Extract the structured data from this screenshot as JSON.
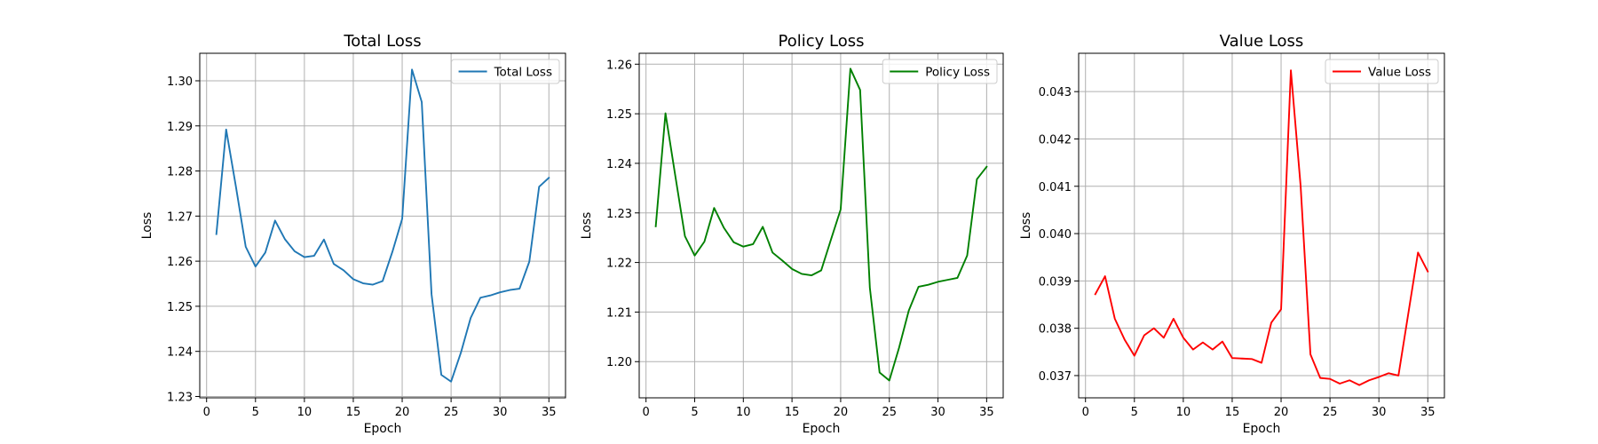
{
  "chart_data": [
    {
      "type": "line",
      "title": "Total Loss",
      "xlabel": "Epoch",
      "ylabel": "Loss",
      "grid": true,
      "legend_position": "top-right",
      "xlim": [
        -0.7,
        36.7
      ],
      "ylim": [
        1.2297,
        1.3061
      ],
      "xticks": [
        0,
        5,
        10,
        15,
        20,
        25,
        30,
        35
      ],
      "xtick_labels": [
        "0",
        "5",
        "10",
        "15",
        "20",
        "25",
        "30",
        "35"
      ],
      "yticks": [
        1.23,
        1.24,
        1.25,
        1.26,
        1.27,
        1.28,
        1.29,
        1.3
      ],
      "ytick_labels": [
        "1.23",
        "1.24",
        "1.25",
        "1.26",
        "1.27",
        "1.28",
        "1.29",
        "1.30"
      ],
      "x": [
        1,
        2,
        3,
        4,
        5,
        6,
        7,
        8,
        9,
        10,
        11,
        12,
        13,
        14,
        15,
        16,
        17,
        18,
        19,
        20,
        21,
        22,
        23,
        24,
        25,
        26,
        27,
        28,
        29,
        30,
        31,
        32,
        33,
        34,
        35
      ],
      "series": [
        {
          "name": "Total Loss",
          "color": "#1f77b4",
          "values": [
            1.266,
            1.2892,
            1.2765,
            1.2632,
            1.2588,
            1.2619,
            1.269,
            1.2649,
            1.2622,
            1.2609,
            1.2612,
            1.2648,
            1.2594,
            1.258,
            1.256,
            1.2551,
            1.2548,
            1.2556,
            1.2621,
            1.2694,
            1.3025,
            1.2953,
            1.2527,
            1.2348,
            1.2333,
            1.2397,
            1.2474,
            1.2519,
            1.2524,
            1.2531,
            1.2536,
            1.2539,
            1.2599,
            1.2765,
            1.2785
          ]
        }
      ]
    },
    {
      "type": "line",
      "title": "Policy Loss",
      "xlabel": "Epoch",
      "ylabel": "Loss",
      "grid": true,
      "legend_position": "top-right",
      "xlim": [
        -0.7,
        36.7
      ],
      "ylim": [
        1.1927,
        1.2622
      ],
      "xticks": [
        0,
        5,
        10,
        15,
        20,
        25,
        30,
        35
      ],
      "xtick_labels": [
        "0",
        "5",
        "10",
        "15",
        "20",
        "25",
        "30",
        "35"
      ],
      "yticks": [
        1.2,
        1.21,
        1.22,
        1.23,
        1.24,
        1.25,
        1.26
      ],
      "ytick_labels": [
        "1.20",
        "1.21",
        "1.22",
        "1.23",
        "1.24",
        "1.25",
        "1.26"
      ],
      "x": [
        1,
        2,
        3,
        4,
        5,
        6,
        7,
        8,
        9,
        10,
        11,
        12,
        13,
        14,
        15,
        16,
        17,
        18,
        19,
        20,
        21,
        22,
        23,
        24,
        25,
        26,
        27,
        28,
        29,
        30,
        31,
        32,
        33,
        34,
        35
      ],
      "series": [
        {
          "name": "Policy Loss",
          "color": "#008000",
          "values": [
            1.2273,
            1.2501,
            1.2376,
            1.2253,
            1.2214,
            1.2242,
            1.231,
            1.227,
            1.2241,
            1.2232,
            1.2237,
            1.2272,
            1.222,
            1.2204,
            1.2187,
            1.2177,
            1.2174,
            1.2184,
            1.2246,
            1.2307,
            1.2591,
            1.2548,
            1.2149,
            1.1978,
            1.1962,
            1.2028,
            1.2103,
            1.2151,
            1.2155,
            1.2161,
            1.2165,
            1.2169,
            1.2214,
            1.2368,
            1.2393
          ]
        }
      ]
    },
    {
      "type": "line",
      "title": "Value Loss",
      "xlabel": "Epoch",
      "ylabel": "Loss",
      "grid": true,
      "legend_position": "top-right",
      "xlim": [
        -0.7,
        36.7
      ],
      "ylim": [
        0.03653,
        0.04381
      ],
      "xticks": [
        0,
        5,
        10,
        15,
        20,
        25,
        30,
        35
      ],
      "xtick_labels": [
        "0",
        "5",
        "10",
        "15",
        "20",
        "25",
        "30",
        "35"
      ],
      "yticks": [
        0.037,
        0.038,
        0.039,
        0.04,
        0.041,
        0.042,
        0.043
      ],
      "ytick_labels": [
        "0.037",
        "0.038",
        "0.039",
        "0.040",
        "0.041",
        "0.042",
        "0.043"
      ],
      "x": [
        1,
        2,
        3,
        4,
        5,
        6,
        7,
        8,
        9,
        10,
        11,
        12,
        13,
        14,
        15,
        16,
        17,
        18,
        19,
        20,
        21,
        22,
        23,
        24,
        25,
        26,
        27,
        28,
        29,
        30,
        31,
        32,
        33,
        34,
        35
      ],
      "series": [
        {
          "name": "Value Loss",
          "color": "#ff0000",
          "values": [
            0.03872,
            0.0391,
            0.0382,
            0.03776,
            0.03742,
            0.03785,
            0.038,
            0.0378,
            0.0382,
            0.0378,
            0.03755,
            0.0377,
            0.03755,
            0.03772,
            0.03737,
            0.03736,
            0.03735,
            0.03727,
            0.03812,
            0.0384,
            0.04345,
            0.041,
            0.03745,
            0.03695,
            0.03693,
            0.03683,
            0.0369,
            0.0368,
            0.0369,
            0.03697,
            0.03705,
            0.037,
            0.0383,
            0.0396,
            0.0392
          ]
        }
      ]
    }
  ]
}
